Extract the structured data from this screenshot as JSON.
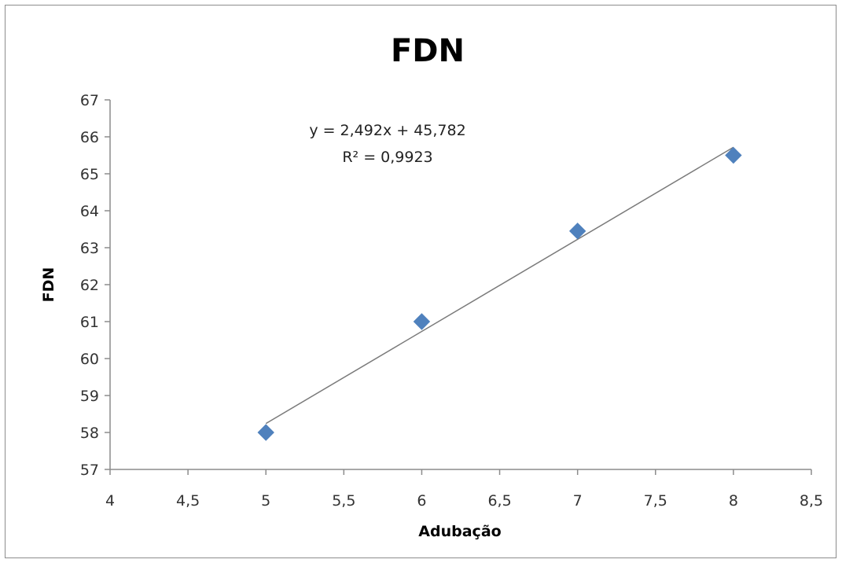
{
  "chart_data": {
    "type": "scatter",
    "title": "FDN",
    "xlabel": "Adubação",
    "ylabel": "FDN",
    "xlim": [
      4,
      8.5
    ],
    "ylim": [
      57,
      67
    ],
    "x_ticks": [
      "4",
      "4,5",
      "5",
      "5,5",
      "6",
      "6,5",
      "7",
      "7,5",
      "8",
      "8,5"
    ],
    "y_ticks": [
      "57",
      "58",
      "59",
      "60",
      "61",
      "62",
      "63",
      "64",
      "65",
      "66",
      "67"
    ],
    "grid": false,
    "legend": "none",
    "marker": "diamond",
    "marker_color": "#4f81bd",
    "series": [
      {
        "x": [
          5,
          6,
          7,
          8
        ],
        "y": [
          58.0,
          61.0,
          63.45,
          65.5
        ]
      }
    ],
    "trendline": {
      "type": "linear",
      "slope": 2.492,
      "intercept": 45.782,
      "equation": "y = 2,492x + 45,782",
      "r_squared": "R² = 0,9923",
      "color": "#7a7a7a"
    }
  }
}
